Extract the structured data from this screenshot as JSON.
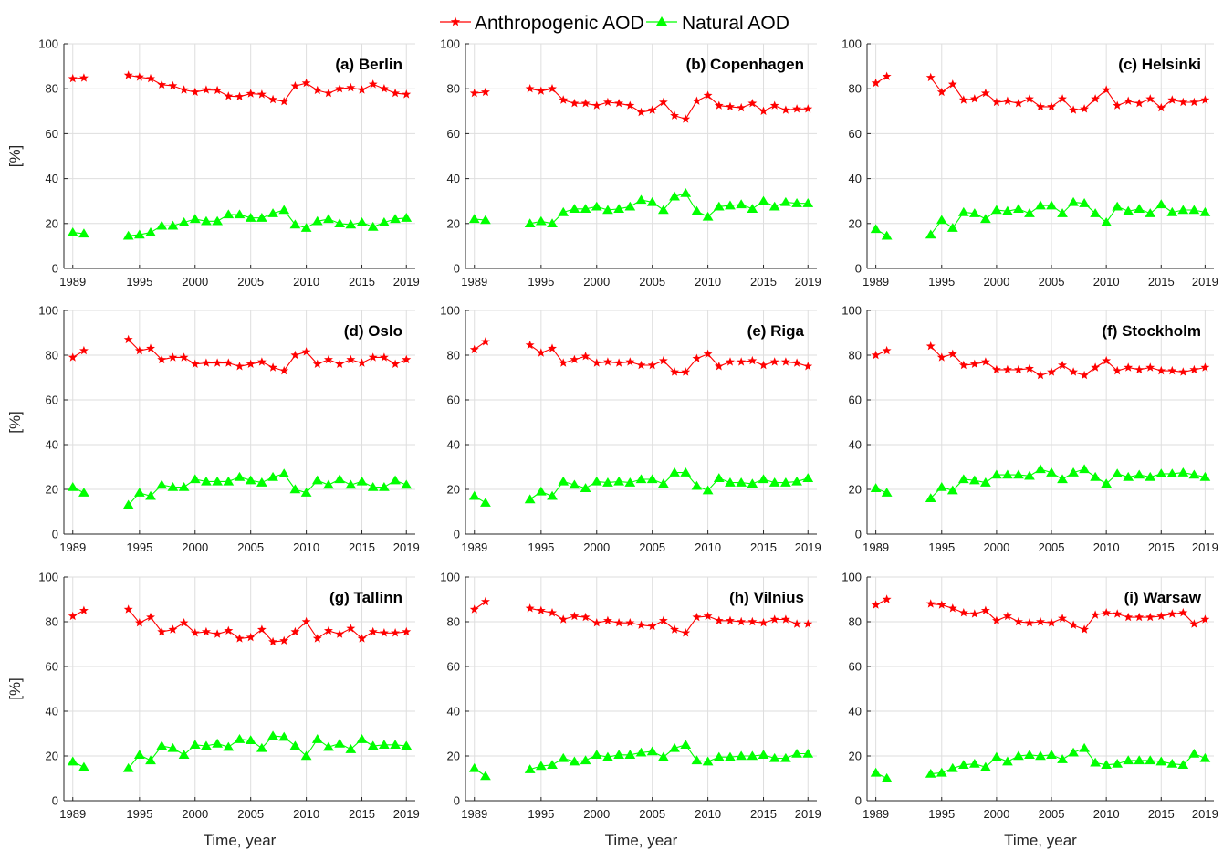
{
  "legend": {
    "anthropogenic": "Anthropogenic AOD",
    "natural": "Natural AOD"
  },
  "colors": {
    "anthropogenic": "#ff0000",
    "natural": "#00ff00",
    "grid": "#dedede",
    "axis": "#262626"
  },
  "chart_data": {
    "type": "line",
    "years": [
      1989,
      1990,
      1994,
      1995,
      1996,
      1997,
      1998,
      1999,
      2000,
      2001,
      2002,
      2003,
      2004,
      2005,
      2006,
      2007,
      2008,
      2009,
      2010,
      2011,
      2012,
      2013,
      2014,
      2015,
      2016,
      2017,
      2018,
      2019
    ],
    "xticks": [
      1989,
      1995,
      2000,
      2005,
      2010,
      2015,
      2019
    ],
    "yticks": [
      0,
      20,
      40,
      60,
      80,
      100
    ],
    "xlim": [
      1988.2,
      2019.8
    ],
    "ylim": [
      0,
      100
    ],
    "ylabel": "[%]",
    "xlabel": "Time, year",
    "grid": true,
    "legend_position": "top-center",
    "panels": [
      {
        "title": "(a) Berlin",
        "anthropogenic": [
          84.5,
          84.8,
          86,
          85.2,
          84.5,
          81.8,
          81.3,
          79.5,
          78.5,
          79.5,
          79.3,
          76.7,
          76.5,
          77.8,
          77.5,
          75.2,
          74.3,
          81.2,
          82.5,
          79.3,
          78,
          80,
          80.5,
          79.5,
          82,
          80,
          78,
          77.5
        ],
        "natural": [
          16,
          15.5,
          14.5,
          15,
          16,
          19,
          19,
          20.5,
          22,
          21,
          21,
          24,
          24,
          22.5,
          22.5,
          24.5,
          26,
          19.5,
          18,
          21,
          22,
          20,
          19.5,
          20.5,
          18.5,
          20.5,
          22,
          22.5
        ]
      },
      {
        "title": "(b) Copenhagen",
        "anthropogenic": [
          78,
          78.5,
          80,
          79,
          80,
          75,
          73.5,
          73.5,
          72.5,
          74,
          73.5,
          72.5,
          69.5,
          70.5,
          74,
          68,
          66.5,
          74.5,
          77,
          72.5,
          72,
          71.5,
          73.5,
          70,
          72.5,
          70.5,
          71,
          71
        ],
        "natural": [
          22,
          21.5,
          20,
          21,
          20,
          25,
          26.5,
          26.5,
          27.5,
          26,
          26.5,
          27.5,
          30.5,
          29.5,
          26,
          32,
          33.5,
          25.5,
          23,
          27.5,
          28,
          28.5,
          26.5,
          30,
          27.5,
          29.5,
          29,
          29
        ]
      },
      {
        "title": "(c) Helsinki",
        "anthropogenic": [
          82.5,
          85.5,
          85,
          78.5,
          82,
          75,
          75.5,
          78,
          74,
          74.5,
          73.5,
          75.5,
          72,
          72,
          75.5,
          70.5,
          71,
          75.5,
          79.5,
          72.5,
          74.5,
          73.5,
          75.5,
          71.5,
          75,
          74,
          74,
          75
        ],
        "natural": [
          17.5,
          14.5,
          15,
          21.5,
          18,
          25,
          24.5,
          22,
          26,
          25.5,
          26.5,
          24.5,
          28,
          28,
          24.5,
          29.5,
          29,
          24.5,
          20.5,
          27.5,
          25.5,
          26.5,
          24.5,
          28.5,
          25,
          26,
          26,
          25
        ]
      },
      {
        "title": "(d) Oslo",
        "anthropogenic": [
          79,
          82,
          87,
          82,
          83,
          78,
          79,
          79,
          76,
          76.5,
          76.5,
          76.5,
          75,
          76,
          77,
          74.5,
          73,
          80,
          81.5,
          76,
          78,
          76,
          78,
          76.5,
          79,
          79,
          76,
          78
        ],
        "natural": [
          21,
          18.5,
          13,
          18.5,
          17,
          22,
          21,
          21,
          24.5,
          23.5,
          23.5,
          23.5,
          25.5,
          24,
          23,
          25.5,
          27,
          20,
          18.5,
          24,
          22,
          24.5,
          22,
          23.5,
          21,
          21,
          24,
          22
        ]
      },
      {
        "title": "(e) Riga",
        "anthropogenic": [
          82.5,
          86,
          84.5,
          81,
          83,
          76.5,
          78,
          79.5,
          76.5,
          77,
          76.5,
          77,
          75.5,
          75.5,
          77.5,
          72.5,
          72.5,
          78.5,
          80.5,
          75,
          77,
          77,
          77.5,
          75.5,
          77,
          77,
          76.5,
          75
        ],
        "natural": [
          17,
          14,
          15.5,
          19,
          17,
          23.5,
          22,
          20.5,
          23.5,
          23,
          23.5,
          23,
          24.5,
          24.5,
          22.5,
          27.5,
          27.5,
          21.5,
          19.5,
          25,
          23,
          23,
          22.5,
          24.5,
          23,
          23,
          23.5,
          25
        ]
      },
      {
        "title": "(f) Stockholm",
        "anthropogenic": [
          80,
          82,
          84,
          79,
          80.5,
          75.5,
          76,
          77,
          73.5,
          73.5,
          73.5,
          74,
          71,
          72.5,
          75.5,
          72.5,
          71,
          74.5,
          77.5,
          73,
          74.5,
          73.5,
          74.5,
          73,
          73,
          72.5,
          73.5,
          74.5
        ],
        "natural": [
          20.5,
          18.5,
          16,
          21,
          19.5,
          24.5,
          24,
          23,
          26.5,
          26.5,
          26.5,
          26,
          29,
          27.5,
          24.5,
          27.5,
          29,
          25.5,
          22.5,
          27,
          25.5,
          26.5,
          25.5,
          27,
          27,
          27.5,
          26.5,
          25.5
        ]
      },
      {
        "title": "(g) Tallinn",
        "anthropogenic": [
          82.5,
          85,
          85.5,
          79.5,
          82,
          75.5,
          76.5,
          79.5,
          75,
          75.5,
          74.5,
          76,
          72.5,
          73,
          76.5,
          71,
          71.5,
          75.5,
          80,
          72.5,
          76,
          74.5,
          77,
          72.5,
          75.5,
          75,
          75,
          75.5
        ],
        "natural": [
          17.5,
          15,
          14.5,
          20.5,
          18,
          24.5,
          23.5,
          20.5,
          25,
          24.5,
          25.5,
          24,
          27.5,
          27,
          23.5,
          29,
          28.5,
          24.5,
          20,
          27.5,
          24,
          25.5,
          23,
          27.5,
          24.5,
          25,
          25,
          24.5
        ]
      },
      {
        "title": "(h) Vilnius",
        "anthropogenic": [
          85.5,
          89,
          86,
          85,
          84,
          81,
          82.5,
          82,
          79.5,
          80.5,
          79.5,
          79.5,
          78.5,
          78,
          80.5,
          76.5,
          75,
          82,
          82.5,
          80.5,
          80.5,
          80,
          80,
          79.5,
          81,
          81,
          79,
          79
        ],
        "natural": [
          14.5,
          11,
          14,
          15.5,
          16,
          19,
          17.5,
          18,
          20.5,
          19.5,
          20.5,
          20.5,
          21.5,
          22,
          19.5,
          23.5,
          25,
          18,
          17.5,
          19.5,
          19.5,
          20,
          20,
          20.5,
          19,
          19,
          21,
          21
        ]
      },
      {
        "title": "(i) Warsaw",
        "anthropogenic": [
          87.5,
          90,
          88,
          87.5,
          86,
          84,
          83.5,
          85,
          80.5,
          82.5,
          80,
          79.5,
          80,
          79.5,
          81.5,
          78.5,
          76.5,
          83,
          84,
          83.5,
          82,
          82,
          82,
          82.5,
          83.5,
          84,
          79,
          81
        ],
        "natural": [
          12.5,
          10,
          12,
          12.5,
          14.5,
          16,
          16.5,
          15,
          19.5,
          17.5,
          20,
          20.5,
          20,
          20.5,
          18.5,
          21.5,
          23.5,
          17,
          16,
          16.5,
          18,
          18,
          18,
          17.5,
          16.5,
          16,
          21,
          19
        ]
      }
    ]
  }
}
